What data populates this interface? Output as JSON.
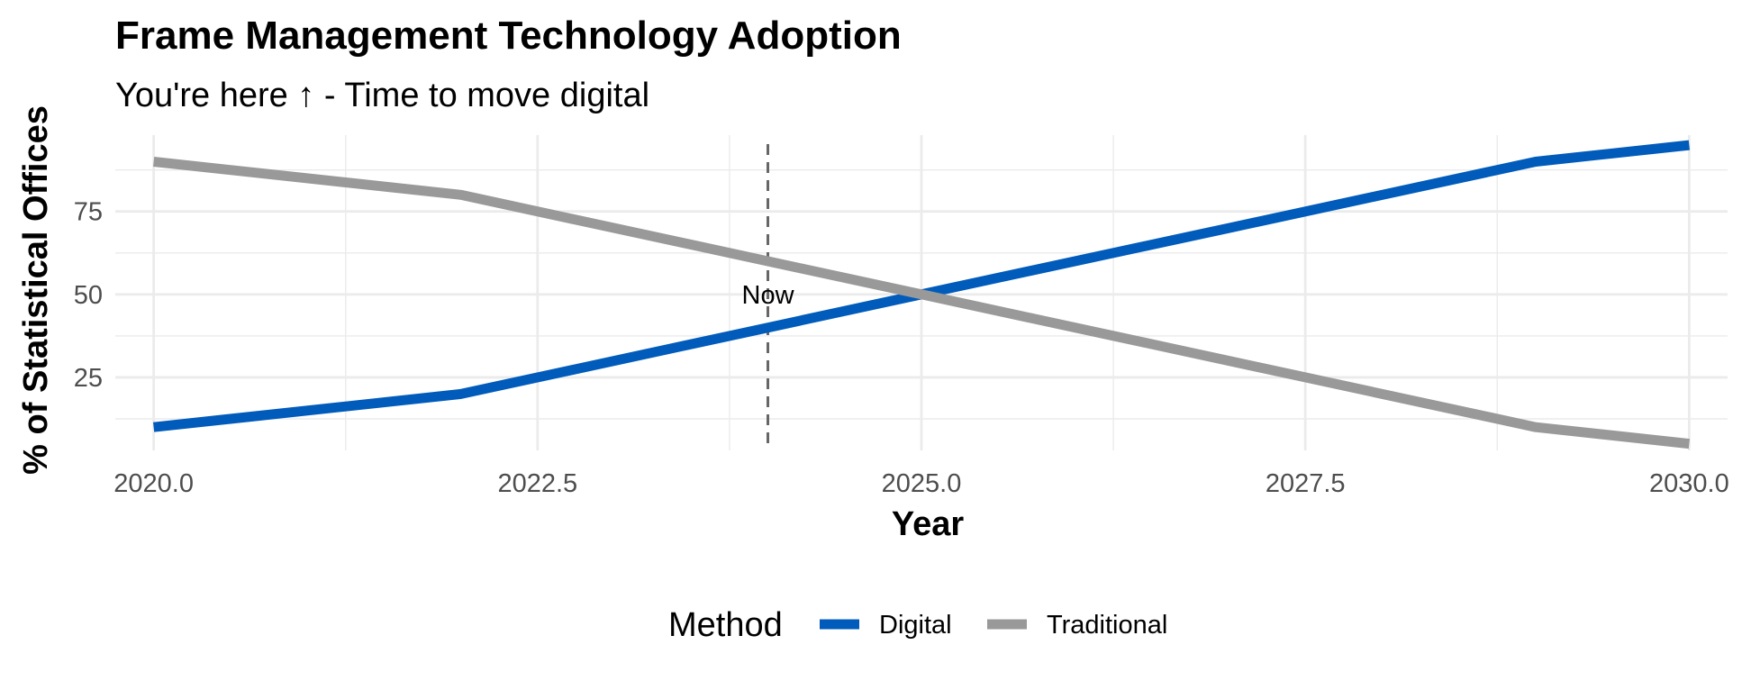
{
  "chart_data": {
    "type": "line",
    "title": "Frame Management Technology Adoption",
    "subtitle": "You're here ↑ - Time to move digital",
    "xlabel": "Year",
    "ylabel": "% of Statistical Offices",
    "xlim": [
      2019.75,
      2030.25
    ],
    "ylim": [
      3,
      98
    ],
    "x_ticks": [
      2020.0,
      2022.5,
      2025.0,
      2027.5,
      2030.0
    ],
    "x_tick_labels": [
      "2020.0",
      "2022.5",
      "2025.0",
      "2027.5",
      "2030.0"
    ],
    "y_ticks": [
      25,
      50,
      75
    ],
    "y_tick_labels": [
      "25",
      "50",
      "75"
    ],
    "grid": true,
    "legend": {
      "title": "Method",
      "placement": "bottom"
    },
    "series": [
      {
        "name": "Digital",
        "color": "#005bbb",
        "x": [
          2020,
          2022,
          2024,
          2025,
          2027,
          2029,
          2030
        ],
        "y": [
          10,
          20,
          40,
          50,
          70,
          90,
          95
        ]
      },
      {
        "name": "Traditional",
        "color": "#999999",
        "x": [
          2020,
          2022,
          2024,
          2025,
          2027,
          2029,
          2030
        ],
        "y": [
          90,
          80,
          60,
          50,
          30,
          10,
          5
        ]
      }
    ],
    "annotations": [
      {
        "type": "vline",
        "x": 2024,
        "style": "dashed",
        "color": "#666666",
        "label": "Now",
        "label_y": 50
      }
    ]
  }
}
